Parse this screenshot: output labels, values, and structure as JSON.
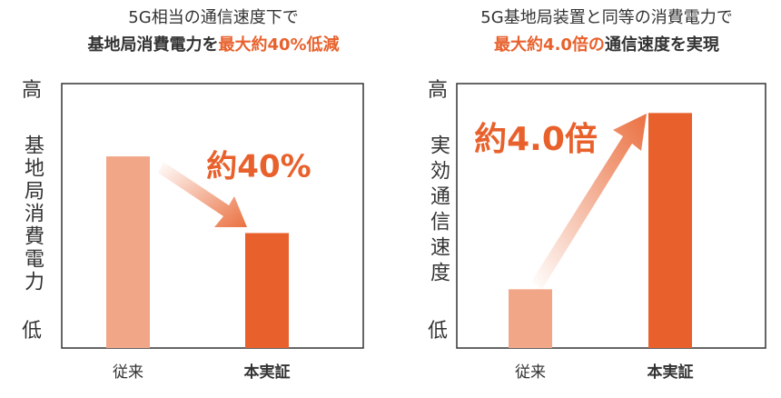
{
  "chart_data": [
    {
      "type": "bar",
      "title_line1": "5G相当の通信速度下で",
      "title_line2": [
        {
          "text": "基地局消費電力を",
          "color": "#333333"
        },
        {
          "text": "最大約40%低減",
          "color": "#e8612c"
        }
      ],
      "y_high": "高",
      "ylabel": "基地局消費電力",
      "y_low": "低",
      "annotation": "約40%",
      "categories": [
        "従来",
        "本実証"
      ],
      "values": [
        100,
        60
      ],
      "colors": [
        "#f2a688",
        "#e8612c"
      ],
      "ylim": [
        0,
        138
      ]
    },
    {
      "type": "bar",
      "title_line1": "5G基地局装置と同等の消費電力で",
      "title_line2": [
        {
          "text": "最大約4.0倍の",
          "color": "#e8612c"
        },
        {
          "text": "通信速度を実現",
          "color": "#333333"
        }
      ],
      "y_high": "高",
      "ylabel": "実効通信速度",
      "y_low": "低",
      "annotation": "約4.0倍",
      "categories": [
        "従来",
        "本実証"
      ],
      "values": [
        1,
        4
      ],
      "colors": [
        "#f2a688",
        "#e8612c"
      ],
      "ylim": [
        0,
        4.5
      ]
    }
  ]
}
